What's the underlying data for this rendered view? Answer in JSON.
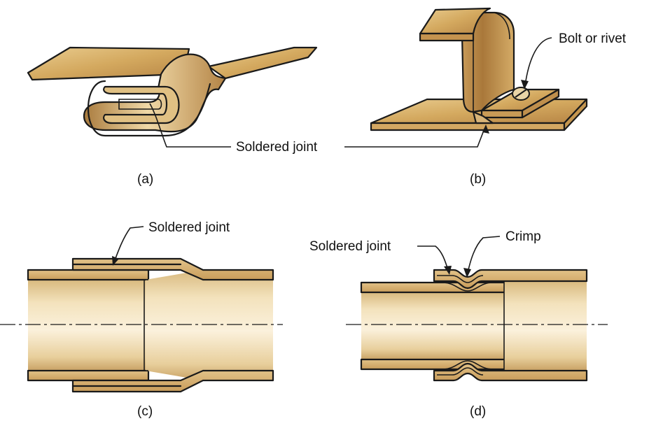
{
  "labels": {
    "a_soldered_joint": "Soldered joint",
    "b_bolt_or_rivet": "Bolt or rivet",
    "c_soldered_joint": "Soldered joint",
    "d_soldered_joint": "Soldered joint",
    "d_crimp": "Crimp"
  },
  "captions": {
    "a": "(a)",
    "b": "(b)",
    "c": "(c)",
    "d": "(d)"
  },
  "colors": {
    "metal_light": "#f2dcae",
    "metal_mid": "#dcb877",
    "metal_dark": "#a97b3e",
    "outline": "#1a1a1a",
    "background": "#ffffff"
  }
}
